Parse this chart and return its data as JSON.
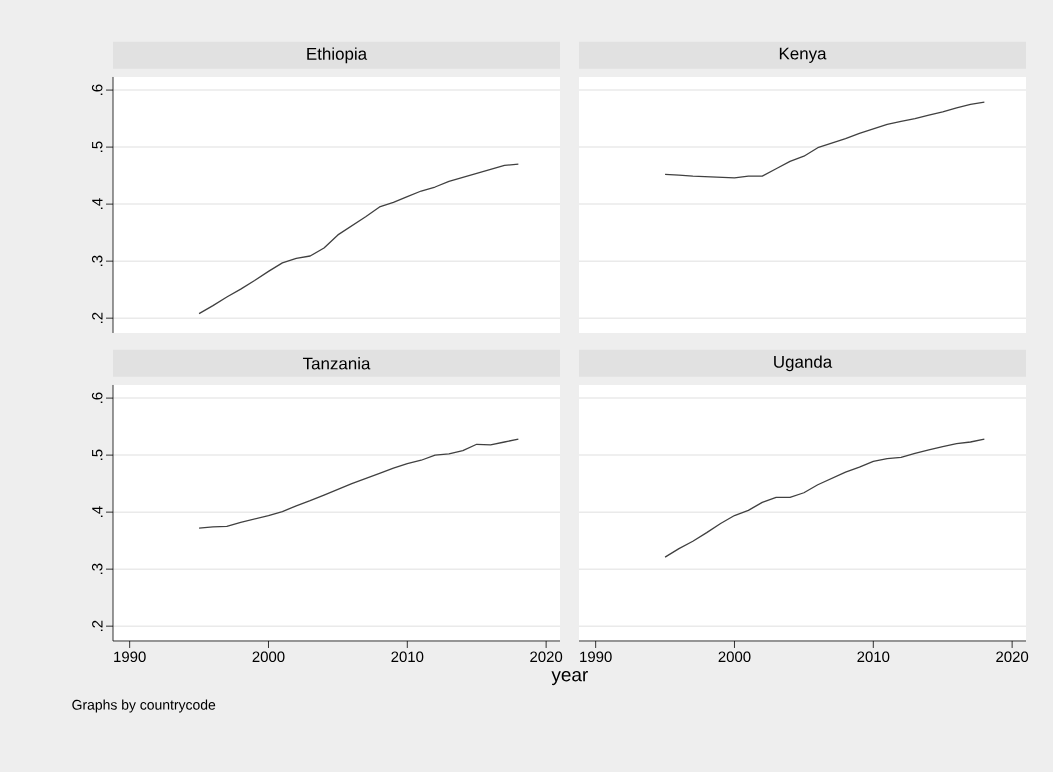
{
  "chart_data": [
    {
      "type": "line",
      "title": "Ethiopia",
      "x": [
        1995,
        1996,
        1997,
        1998,
        1999,
        2000,
        2001,
        2002,
        2003,
        2004,
        2005,
        2006,
        2007,
        2008,
        2009,
        2010,
        2011,
        2012,
        2013,
        2014,
        2015,
        2016,
        2017,
        2018
      ],
      "values": [
        0.208,
        0.222,
        0.237,
        0.251,
        0.266,
        0.282,
        0.297,
        0.305,
        0.309,
        0.323,
        0.346,
        0.362,
        0.378,
        0.395,
        0.403,
        0.413,
        0.423,
        0.43,
        0.44,
        0.447,
        0.454,
        0.461,
        0.468,
        0.47
      ],
      "color": "#404040",
      "xlim": [
        1988.8,
        2021
      ],
      "ylim": [
        0.174,
        0.623
      ],
      "xticks": [
        1990,
        2000,
        2010,
        2020
      ],
      "yticks": [
        {
          "value": 0.2,
          "label": ".2"
        },
        {
          "value": 0.3,
          "label": ".3"
        },
        {
          "value": 0.4,
          "label": ".4"
        },
        {
          "value": 0.5,
          "label": ".5"
        },
        {
          "value": 0.6,
          "label": ".6"
        }
      ],
      "grid": "y",
      "tick_labels": "y"
    },
    {
      "type": "line",
      "title": "Kenya",
      "x": [
        1995,
        1996,
        1997,
        1998,
        1999,
        2000,
        2001,
        2002,
        2003,
        2004,
        2005,
        2006,
        2007,
        2008,
        2009,
        2010,
        2011,
        2012,
        2013,
        2014,
        2015,
        2016,
        2017,
        2018
      ],
      "values": [
        0.452,
        0.451,
        0.449,
        0.448,
        0.447,
        0.446,
        0.449,
        0.449,
        0.462,
        0.475,
        0.484,
        0.499,
        0.507,
        0.515,
        0.524,
        0.532,
        0.54,
        0.545,
        0.55,
        0.556,
        0.562,
        0.569,
        0.575,
        0.579
      ],
      "color": "#404040",
      "xlim": [
        1988.8,
        2021
      ],
      "ylim": [
        0.174,
        0.623
      ],
      "xticks": [
        1990,
        2000,
        2010,
        2020
      ],
      "yticks": [
        {
          "value": 0.2,
          "label": null
        },
        {
          "value": 0.3,
          "label": null
        },
        {
          "value": 0.4,
          "label": null
        },
        {
          "value": 0.5,
          "label": null
        },
        {
          "value": 0.6,
          "label": null
        }
      ],
      "grid": "y",
      "tick_labels": false
    },
    {
      "type": "line",
      "title": "Tanzania",
      "xlabel": "year",
      "x": [
        1995,
        1996,
        1997,
        1998,
        1999,
        2000,
        2001,
        2002,
        2003,
        2004,
        2005,
        2006,
        2007,
        2008,
        2009,
        2010,
        2011,
        2012,
        2013,
        2014,
        2015,
        2016,
        2017,
        2018
      ],
      "values": [
        0.372,
        0.374,
        0.375,
        0.382,
        0.388,
        0.394,
        0.401,
        0.411,
        0.42,
        0.43,
        0.44,
        0.45,
        0.459,
        0.468,
        0.477,
        0.485,
        0.491,
        0.5,
        0.502,
        0.508,
        0.519,
        0.518,
        0.523,
        0.528
      ],
      "color": "#404040",
      "xlim": [
        1988.8,
        2021
      ],
      "ylim": [
        0.174,
        0.623
      ],
      "xticks": [
        1990,
        2000,
        2010,
        2020
      ],
      "yticks": [
        {
          "value": 0.2,
          "label": ".2"
        },
        {
          "value": 0.3,
          "label": ".3"
        },
        {
          "value": 0.4,
          "label": ".4"
        },
        {
          "value": 0.5,
          "label": ".5"
        },
        {
          "value": 0.6,
          "label": ".6"
        }
      ],
      "grid": "y"
    },
    {
      "type": "line",
      "title": "Uganda",
      "annotations": [
        "Graphs by countrycode"
      ],
      "x": [
        1995,
        1996,
        1997,
        1998,
        1999,
        2000,
        2001,
        2002,
        2003,
        2004,
        2005,
        2006,
        2007,
        2008,
        2009,
        2010,
        2011,
        2012,
        2013,
        2014,
        2015,
        2016,
        2017,
        2018
      ],
      "values": [
        0.321,
        0.336,
        0.349,
        0.364,
        0.38,
        0.394,
        0.403,
        0.417,
        0.426,
        0.426,
        0.434,
        0.448,
        0.459,
        0.47,
        0.479,
        0.489,
        0.494,
        0.496,
        0.503,
        0.509,
        0.515,
        0.52,
        0.523,
        0.528
      ],
      "color": "#404040",
      "xlim": [
        1988.8,
        2021
      ],
      "ylim": [
        0.174,
        0.623
      ],
      "xticks": [
        1990,
        2000,
        2010,
        2020
      ],
      "yticks": [
        {
          "value": 0.2,
          "label": null
        },
        {
          "value": 0.3,
          "label": null
        },
        {
          "value": 0.4,
          "label": null
        },
        {
          "value": 0.5,
          "label": null
        },
        {
          "value": 0.6,
          "label": null
        }
      ],
      "grid": "y",
      "tick_labels": "x"
    }
  ]
}
